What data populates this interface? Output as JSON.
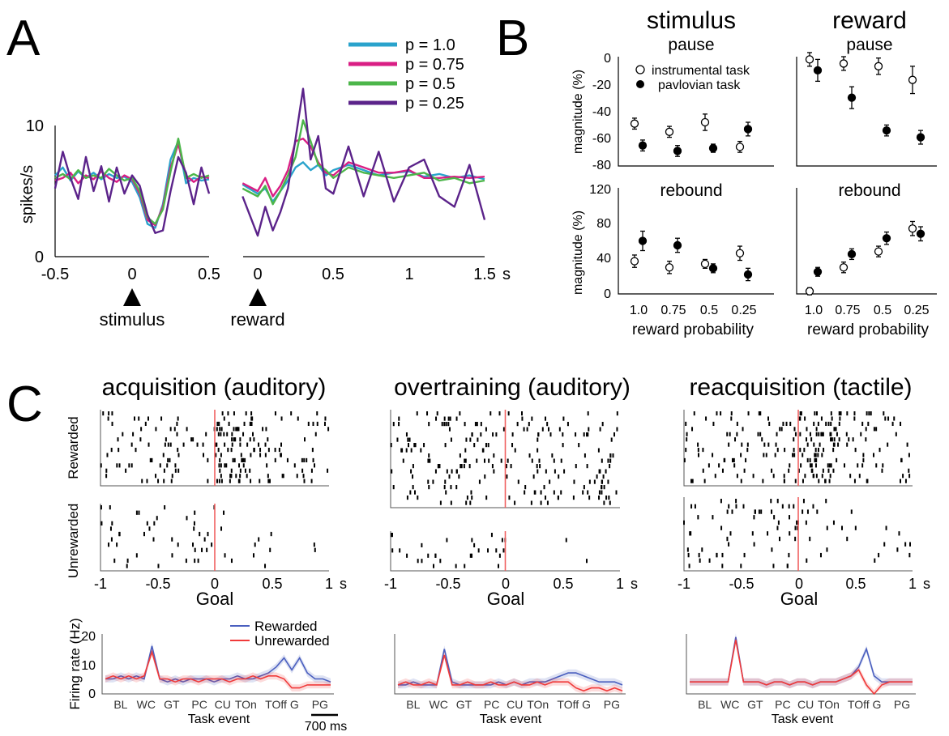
{
  "colors": {
    "p100": "#2aa3cc",
    "p075": "#d91e84",
    "p050": "#4cb64a",
    "p025": "#5b238a",
    "rewarded": "#4a5fbf",
    "unrewarded": "#f03a3a",
    "goal_line": "#f06060"
  },
  "panelA": {
    "letter": "A",
    "ylabel": "spikes/s",
    "x_unit": "s",
    "marker_stimulus": "stimulus",
    "marker_reward": "reward",
    "legend": [
      "p = 1.0",
      "p = 0.75",
      "p = 0.5",
      "p = 0.25"
    ]
  },
  "panelB": {
    "letter": "B",
    "col_titles": [
      "stimulus",
      "reward"
    ],
    "row_titles": [
      "pause",
      "rebound"
    ],
    "ylabel": "magnitude (%)",
    "xlabel": "reward probability",
    "legend": [
      "instrumental task",
      "pavlovian task"
    ]
  },
  "panelC": {
    "letter": "C",
    "titles": [
      "acquisition (auditory)",
      "overtraining (auditory)",
      "reacquisition (tactile)"
    ],
    "raster_rows": [
      "Rewarded",
      "Unrewarded"
    ],
    "raster_xlabel": "Goal",
    "raster_unit": "s",
    "fr_ylabel": "Firing rate (Hz)",
    "fr_xlabel": "Task event",
    "fr_events": [
      "BL",
      "WC",
      "GT",
      "PC",
      "CU",
      "TOn",
      "TOff",
      "G",
      "PG"
    ],
    "fr_legend": [
      "Rewarded",
      "Unrewarded"
    ],
    "scalebar": "700 ms"
  },
  "chart_data": [
    {
      "type": "line",
      "id": "A-stimulus",
      "xlim": [
        -0.5,
        0.5
      ],
      "ylim": [
        0,
        10
      ],
      "x_ticks": [
        "-0.5",
        "0",
        "0.5"
      ],
      "y_ticks": [
        "0",
        "10"
      ],
      "x": [
        -0.5,
        -0.45,
        -0.4,
        -0.35,
        -0.3,
        -0.25,
        -0.2,
        -0.15,
        -0.1,
        -0.05,
        0,
        0.05,
        0.1,
        0.15,
        0.2,
        0.25,
        0.3,
        0.35,
        0.4,
        0.45,
        0.5
      ],
      "series": [
        {
          "name": "p = 1.0",
          "values": [
            6.2,
            6.8,
            5.8,
            6.5,
            6.0,
            6.4,
            5.9,
            6.3,
            6.0,
            6.1,
            5.7,
            4.5,
            2.5,
            2.2,
            4.0,
            7.4,
            8.8,
            5.6,
            6.0,
            5.8,
            5.9
          ]
        },
        {
          "name": "p = 0.75",
          "values": [
            5.8,
            6.0,
            6.4,
            5.6,
            6.2,
            5.9,
            6.5,
            6.0,
            5.7,
            6.2,
            5.9,
            4.8,
            2.8,
            2.4,
            3.8,
            6.8,
            8.6,
            6.2,
            5.7,
            6.1,
            6.0
          ]
        },
        {
          "name": "p = 0.5",
          "values": [
            6.0,
            6.3,
            5.9,
            6.6,
            6.0,
            6.2,
            6.0,
            6.7,
            6.2,
            5.8,
            6.0,
            5.0,
            3.0,
            2.5,
            3.6,
            6.5,
            9.0,
            6.0,
            6.3,
            6.0,
            6.2
          ]
        },
        {
          "name": "p = 0.25",
          "values": [
            5.2,
            8.0,
            6.0,
            4.4,
            7.6,
            5.0,
            6.9,
            4.2,
            6.8,
            4.8,
            6.2,
            5.4,
            3.2,
            1.8,
            2.0,
            5.0,
            7.6,
            6.4,
            4.0,
            6.8,
            4.8
          ]
        }
      ]
    },
    {
      "type": "line",
      "id": "A-reward",
      "xlim": [
        0,
        1.5
      ],
      "ylim": [
        0,
        10
      ],
      "x_ticks": [
        "0",
        "0.5",
        "1",
        "1.5"
      ],
      "x": [
        -0.1,
        0,
        0.05,
        0.1,
        0.15,
        0.2,
        0.25,
        0.3,
        0.35,
        0.4,
        0.45,
        0.5,
        0.6,
        0.7,
        0.8,
        0.9,
        1.0,
        1.1,
        1.2,
        1.3,
        1.4,
        1.5
      ],
      "series": [
        {
          "name": "p = 1.0",
          "values": [
            5.5,
            4.8,
            5.2,
            4.2,
            5.0,
            5.8,
            6.8,
            7.2,
            6.6,
            7.0,
            6.2,
            6.6,
            7.0,
            6.6,
            6.2,
            6.4,
            6.5,
            6.1,
            6.3,
            6.0,
            6.2,
            5.9
          ]
        },
        {
          "name": "p = 0.75",
          "values": [
            5.6,
            5.0,
            6.0,
            4.6,
            5.4,
            6.6,
            8.8,
            9.0,
            8.4,
            7.2,
            6.4,
            6.2,
            7.2,
            6.8,
            6.4,
            6.4,
            6.6,
            6.0,
            6.0,
            6.1,
            6.0,
            6.1
          ]
        },
        {
          "name": "p = 0.5",
          "values": [
            5.2,
            4.6,
            5.4,
            4.0,
            5.0,
            6.2,
            7.6,
            10.4,
            8.8,
            7.0,
            6.6,
            6.0,
            6.8,
            6.4,
            6.2,
            6.0,
            6.2,
            6.4,
            5.8,
            6.0,
            5.6,
            5.8
          ]
        },
        {
          "name": "p = 0.25",
          "values": [
            4.6,
            1.6,
            3.8,
            2.0,
            3.4,
            5.2,
            9.0,
            12.8,
            7.4,
            9.2,
            5.2,
            4.8,
            8.4,
            4.6,
            8.0,
            4.2,
            6.8,
            7.4,
            4.6,
            3.8,
            7.0,
            2.8
          ]
        }
      ]
    },
    {
      "type": "scatter",
      "id": "B-stimulus-pause",
      "ylim": [
        -80,
        0
      ],
      "y_ticks": [
        "0",
        "-20",
        "-40",
        "-60",
        "-80"
      ],
      "categories": [
        "1.0",
        "0.75",
        "0.5",
        "0.25"
      ],
      "series": [
        {
          "name": "instrumental task",
          "values": [
            -49,
            -55,
            -48,
            -66
          ],
          "err": [
            4,
            4,
            6,
            4
          ]
        },
        {
          "name": "pavlovian task",
          "values": [
            -65,
            -69,
            -67,
            -53
          ],
          "err": [
            4,
            4,
            3,
            5
          ]
        }
      ]
    },
    {
      "type": "scatter",
      "id": "B-reward-pause",
      "ylim": [
        -80,
        0
      ],
      "categories": [
        "1.0",
        "0.75",
        "0.5",
        "0.25"
      ],
      "series": [
        {
          "name": "instrumental task",
          "values": [
            -2,
            -5,
            -7,
            -17
          ],
          "err": [
            5,
            5,
            6,
            10
          ]
        },
        {
          "name": "pavlovian task",
          "values": [
            -10,
            -30,
            -54,
            -59
          ],
          "err": [
            8,
            8,
            4,
            5
          ]
        }
      ]
    },
    {
      "type": "scatter",
      "id": "B-stimulus-rebound",
      "ylim": [
        0,
        120
      ],
      "y_ticks": [
        "120",
        "80",
        "40",
        "0"
      ],
      "categories": [
        "1.0",
        "0.75",
        "0.5",
        "0.25"
      ],
      "series": [
        {
          "name": "instrumental task",
          "values": [
            37,
            30,
            34,
            46
          ],
          "err": [
            7,
            7,
            5,
            8
          ]
        },
        {
          "name": "pavlovian task",
          "values": [
            60,
            55,
            29,
            22
          ],
          "err": [
            11,
            8,
            5,
            7
          ]
        }
      ]
    },
    {
      "type": "scatter",
      "id": "B-reward-rebound",
      "ylim": [
        0,
        120
      ],
      "categories": [
        "1.0",
        "0.75",
        "0.5",
        "0.25"
      ],
      "series": [
        {
          "name": "instrumental task",
          "values": [
            3,
            30,
            48,
            74
          ],
          "err": [
            4,
            6,
            6,
            8
          ]
        },
        {
          "name": "pavlovian task",
          "values": [
            25,
            45,
            63,
            68
          ],
          "err": [
            5,
            6,
            7,
            8
          ]
        }
      ]
    },
    {
      "type": "line",
      "id": "C-firing-rate",
      "ylim": [
        0,
        20
      ],
      "y_ticks": [
        "0",
        "10",
        "20"
      ],
      "x_ticks": [
        "-1",
        "-0.5",
        "0",
        "0.5",
        "1"
      ],
      "panels": [
        {
          "title": "acquisition (auditory)",
          "series": [
            {
              "name": "Rewarded",
              "values": [
                5,
                5,
                6,
                5,
                6,
                5,
                16,
                5,
                4,
                5,
                4,
                5,
                5,
                5,
                4,
                5,
                5,
                6,
                5,
                5,
                6,
                7,
                9,
                12,
                8,
                12,
                7,
                5,
                5,
                4
              ]
            },
            {
              "name": "Unrewarded",
              "values": [
                5,
                6,
                5,
                6,
                5,
                6,
                14,
                5,
                5,
                4,
                5,
                5,
                4,
                5,
                5,
                5,
                4,
                5,
                5,
                6,
                5,
                6,
                6,
                5,
                2,
                2,
                3,
                3,
                3,
                3
              ]
            }
          ]
        },
        {
          "title": "overtraining (auditory)",
          "series": [
            {
              "name": "Rewarded",
              "values": [
                3,
                3,
                4,
                3,
                3,
                3,
                15,
                4,
                3,
                3,
                3,
                3,
                3,
                4,
                3,
                4,
                3,
                4,
                4,
                4,
                5,
                6,
                7,
                7,
                6,
                5,
                4,
                4,
                4,
                3
              ]
            },
            {
              "name": "Unrewarded",
              "values": [
                3,
                4,
                3,
                3,
                4,
                3,
                13,
                3,
                3,
                4,
                3,
                3,
                4,
                3,
                3,
                4,
                3,
                3,
                4,
                3,
                4,
                4,
                4,
                2,
                1,
                2,
                2,
                1,
                2,
                1
              ]
            }
          ]
        },
        {
          "title": "reacquisition (tactile)",
          "series": [
            {
              "name": "Rewarded",
              "values": [
                4,
                4,
                4,
                4,
                4,
                4,
                19,
                4,
                4,
                4,
                3,
                4,
                4,
                3,
                4,
                4,
                3,
                4,
                4,
                4,
                5,
                6,
                9,
                15,
                6,
                4,
                4,
                4,
                4,
                4
              ]
            },
            {
              "name": "Unrewarded",
              "values": [
                4,
                4,
                4,
                4,
                4,
                4,
                18,
                4,
                4,
                4,
                3,
                4,
                4,
                3,
                4,
                4,
                3,
                4,
                4,
                4,
                5,
                6,
                8,
                3,
                0,
                3,
                4,
                4,
                4,
                4
              ]
            }
          ]
        }
      ]
    }
  ]
}
